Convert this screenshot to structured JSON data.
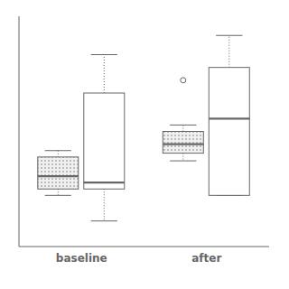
{
  "chart_data": {
    "type": "box",
    "categories": [
      "baseline",
      "after"
    ],
    "series": [
      {
        "color": "#666666",
        "values": [
          {
            "med": 2.0,
            "q1": 1.0,
            "q3": 3.5,
            "whislo": 0.5,
            "whishi": 4.0,
            "fliers": []
          },
          {
            "med": 4.5,
            "q1": 3.8,
            "q3": 5.5,
            "whislo": 3.2,
            "whishi": 6.0,
            "fliers": [
              9.5
            ]
          }
        ]
      },
      {
        "color": "#666666",
        "values": [
          {
            "med": 1.5,
            "q1": 1.0,
            "q3": 8.5,
            "whislo": -1.5,
            "whishi": 11.5,
            "fliers": []
          },
          {
            "med": 6.5,
            "q1": 0.5,
            "q3": 10.5,
            "whislo": 0.5,
            "whishi": 13.0,
            "fliers": []
          }
        ]
      }
    ],
    "ylim": [
      -3.5,
      14.5
    ],
    "tick_labels": "x",
    "grid": false
  }
}
